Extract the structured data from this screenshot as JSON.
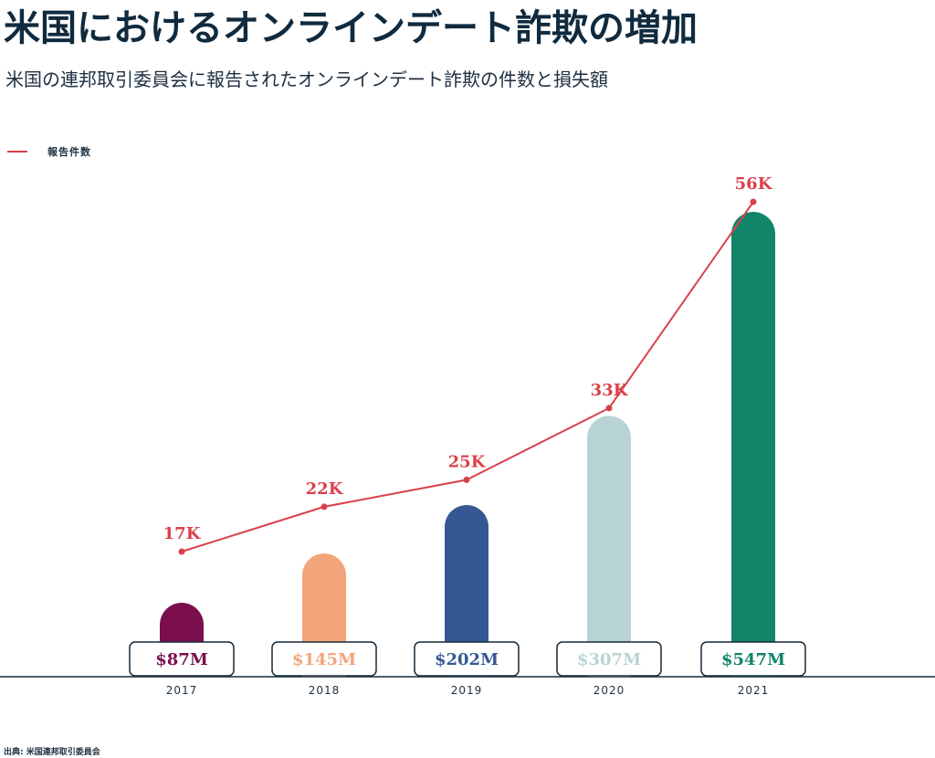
{
  "title": "米国におけるオンラインデート詐欺の増加",
  "subtitle": "米国の連邦取引委員会に報告されたオンラインデート詐欺の件数と損失額",
  "source": "出典: 米国連邦取引委員会",
  "legend": [
    {
      "label": "報告件数",
      "color": "#d9414a"
    }
  ],
  "chart_data": {
    "type": "bar",
    "categories": [
      "2017",
      "2018",
      "2019",
      "2020",
      "2021"
    ],
    "series": [
      {
        "values": [
          87,
          145,
          202,
          307,
          547
        ],
        "labels": [
          "$87M",
          "$145M",
          "$202M",
          "$307M",
          "$547M"
        ],
        "colors": [
          "#7b0f4c",
          "#f2a57a",
          "#355893",
          "#b8d3d3",
          "#12846a"
        ]
      },
      {
        "name": "報告件数",
        "type": "line",
        "values": [
          17,
          22,
          25,
          33,
          56
        ],
        "labels": [
          "17K",
          "22K",
          "25K",
          "33K",
          "56K"
        ],
        "color": "#d9414a"
      }
    ],
    "title": "米国におけるオンラインデート詐欺の増加",
    "subtitle": "米国の連邦取引委員会に報告されたオンラインデート詐欺の件数と損失額",
    "xlabel": "",
    "ylabel": "",
    "grid": false,
    "legend_position": "top-left"
  }
}
